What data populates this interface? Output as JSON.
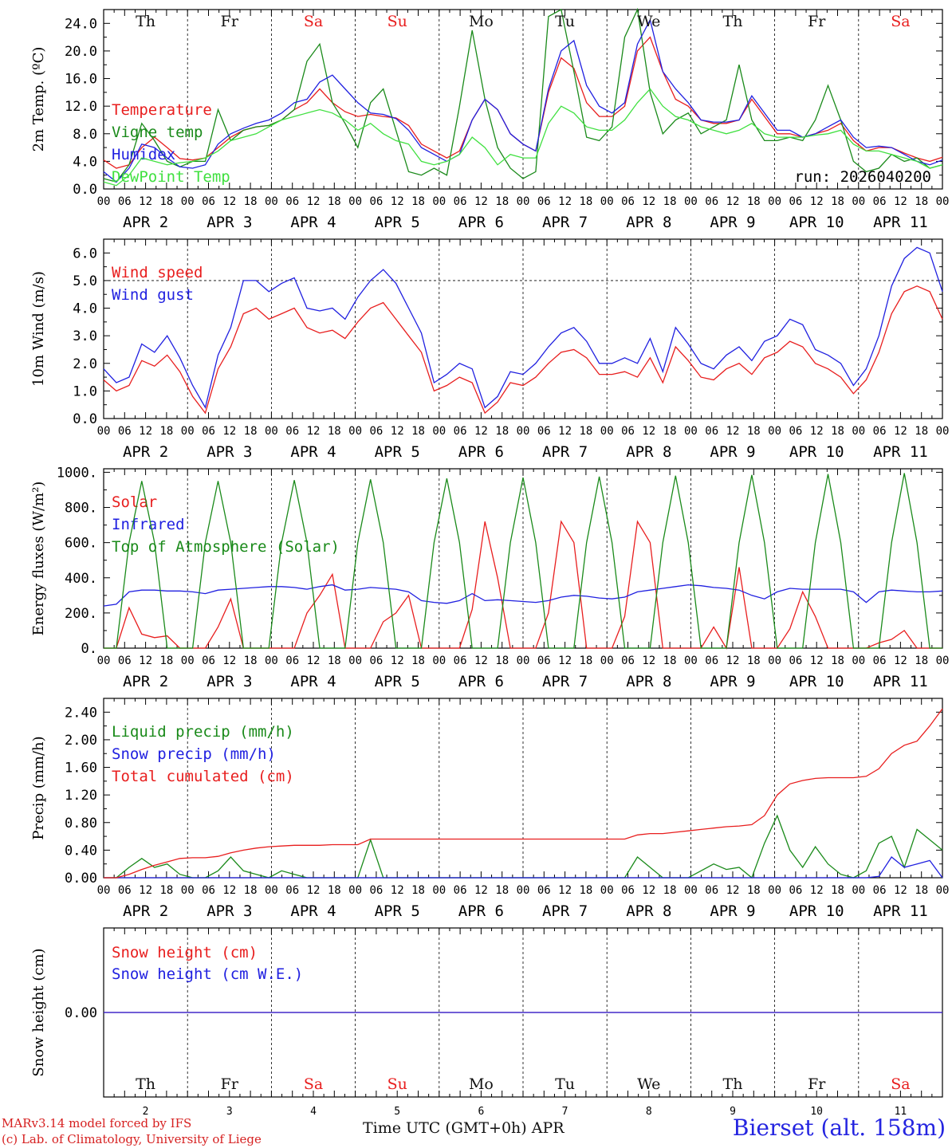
{
  "x_axis": {
    "hour_ticks": [
      "00",
      "06",
      "12",
      "18"
    ],
    "final_hour_tick": "00",
    "date_labels": [
      "APR  2",
      "APR  3",
      "APR  4",
      "APR  5",
      "APR  6",
      "APR  7",
      "APR  8",
      "APR  9",
      "APR 10",
      "APR 11"
    ],
    "day_names": [
      "Th",
      "Fr",
      "Sa",
      "Su",
      "Mo",
      "Tu",
      "We",
      "Th",
      "Fr",
      "Sa"
    ],
    "weekend_flags": [
      false,
      false,
      true,
      true,
      false,
      false,
      false,
      false,
      false,
      true
    ],
    "bottom_day_numbers": [
      "2",
      "3",
      "4",
      "5",
      "6",
      "7",
      "8",
      "9",
      "10",
      "11"
    ]
  },
  "colors": {
    "red": "#e81e1e",
    "blue": "#2020e0",
    "green": "#1a8a1a",
    "light_green": "#40e040",
    "weekend": "#e81e1e",
    "weekday": "#111111"
  },
  "run_label": "run: 2026040200",
  "chart_data": [
    {
      "type": "line",
      "ylabel": "2m Temp. (ºC)",
      "ylim": [
        0,
        26
      ],
      "yticks": [
        "0.0",
        "4.0",
        "8.0",
        "12.0",
        "16.0",
        "20.0",
        "24.0"
      ],
      "ytick_values": [
        0,
        4,
        8,
        12,
        16,
        20,
        24
      ],
      "series": [
        {
          "name": "Temperature",
          "color": "#e81e1e",
          "values": [
            4.2,
            3.0,
            3.5,
            6.0,
            7.5,
            6.0,
            4.4,
            4.2,
            4.5,
            6.0,
            7.5,
            8.5,
            9.0,
            9.2,
            10.0,
            11.5,
            12.5,
            14.5,
            12.5,
            11.2,
            10.5,
            10.8,
            10.5,
            10.3,
            9.2,
            6.5,
            5.5,
            4.5,
            5.5,
            10.0,
            13.0,
            11.5,
            8.0,
            6.5,
            5.5,
            14.0,
            19.0,
            17.5,
            12.5,
            10.5,
            10.5,
            12.0,
            20.0,
            22.0,
            17.0,
            13.0,
            12.0,
            10.0,
            9.5,
            9.5,
            10.0,
            13.0,
            10.5,
            8.0,
            8.0,
            7.5,
            8.0,
            8.5,
            9.5,
            7.0,
            5.5,
            6.0,
            6.0,
            5.2,
            4.5,
            4.0,
            4.6
          ]
        },
        {
          "name": "Vigne temp",
          "color": "#1a8a1a",
          "values": [
            1.5,
            1.0,
            3.5,
            9.5,
            7.0,
            4.0,
            3.2,
            4.0,
            4.0,
            11.5,
            7.0,
            8.5,
            9.0,
            9.2,
            10.0,
            11.5,
            18.5,
            21.0,
            12.5,
            9.5,
            6.0,
            12.5,
            14.5,
            8.5,
            2.5,
            2.0,
            3.0,
            2.0,
            12.0,
            23.0,
            13.0,
            6.0,
            3.0,
            1.5,
            2.5,
            25.0,
            26.0,
            17.0,
            7.5,
            7.0,
            9.0,
            22.0,
            26.0,
            14.0,
            8.0,
            10.0,
            11.0,
            8.0,
            9.0,
            10.0,
            18.0,
            10.0,
            7.0,
            7.0,
            7.5,
            7.0,
            10.0,
            15.0,
            10.0,
            4.0,
            2.5,
            3.0,
            5.0,
            4.0,
            4.5,
            3.0,
            3.5
          ]
        },
        {
          "name": "Humidex",
          "color": "#2020e0",
          "values": [
            2.5,
            1.0,
            3.0,
            6.5,
            6.0,
            4.5,
            3.2,
            3.0,
            3.5,
            6.5,
            8.0,
            8.8,
            9.5,
            10.0,
            11.0,
            12.5,
            13.0,
            15.5,
            16.5,
            14.5,
            12.5,
            11.0,
            10.8,
            10.2,
            8.5,
            6.0,
            5.0,
            4.0,
            5.0,
            10.0,
            13.0,
            11.5,
            8.0,
            6.5,
            5.5,
            14.5,
            20.0,
            21.5,
            15.0,
            12.0,
            11.0,
            12.5,
            21.0,
            24.5,
            17.0,
            14.5,
            12.5,
            10.0,
            9.7,
            9.7,
            10.0,
            13.5,
            11.0,
            8.5,
            8.5,
            7.5,
            8.0,
            9.0,
            10.0,
            7.5,
            6.0,
            6.2,
            6.0,
            5.0,
            4.0,
            3.5,
            4.2
          ]
        },
        {
          "name": "DewPoint Temp",
          "color": "#40e040",
          "values": [
            1.0,
            0.5,
            2.0,
            4.5,
            4.0,
            3.5,
            3.8,
            4.0,
            4.5,
            5.5,
            7.0,
            7.5,
            8.0,
            9.0,
            10.0,
            10.5,
            11.0,
            11.5,
            11.0,
            10.0,
            8.5,
            9.5,
            8.0,
            7.0,
            6.5,
            4.0,
            3.5,
            4.0,
            5.0,
            7.5,
            6.0,
            3.5,
            5.0,
            4.5,
            4.5,
            9.5,
            12.0,
            11.0,
            9.0,
            8.5,
            8.5,
            10.0,
            12.5,
            14.5,
            12.0,
            10.5,
            10.0,
            9.0,
            8.5,
            8.0,
            8.5,
            9.5,
            8.0,
            7.5,
            7.5,
            7.5,
            7.8,
            8.0,
            8.5,
            6.5,
            5.5,
            5.5,
            5.0,
            4.5,
            4.0,
            3.0,
            3.5
          ]
        }
      ]
    },
    {
      "type": "line",
      "ylabel": "10m Wind (m/s)",
      "ylim": [
        0,
        6.5
      ],
      "yticks": [
        "0.0",
        "1.0",
        "2.0",
        "3.0",
        "4.0",
        "5.0",
        "6.0"
      ],
      "ytick_values": [
        0,
        1,
        2,
        3,
        4,
        5,
        6
      ],
      "ref_line": 5.0,
      "series": [
        {
          "name": "Wind speed",
          "color": "#e81e1e",
          "values": [
            1.4,
            1.0,
            1.2,
            2.1,
            1.9,
            2.3,
            1.7,
            0.8,
            0.2,
            1.8,
            2.6,
            3.8,
            4.0,
            3.6,
            3.8,
            4.0,
            3.3,
            3.1,
            3.2,
            2.9,
            3.5,
            4.0,
            4.2,
            3.6,
            3.0,
            2.4,
            1.0,
            1.2,
            1.5,
            1.3,
            0.2,
            0.6,
            1.3,
            1.2,
            1.5,
            2.0,
            2.4,
            2.5,
            2.2,
            1.6,
            1.6,
            1.7,
            1.5,
            2.2,
            1.3,
            2.6,
            2.1,
            1.5,
            1.4,
            1.8,
            2.0,
            1.6,
            2.2,
            2.4,
            2.8,
            2.6,
            2.0,
            1.8,
            1.5,
            0.9,
            1.4,
            2.4,
            3.8,
            4.6,
            4.8,
            4.6,
            3.6
          ]
        },
        {
          "name": "Wind gust",
          "color": "#2020e0",
          "values": [
            1.8,
            1.3,
            1.5,
            2.7,
            2.4,
            3.0,
            2.2,
            1.2,
            0.4,
            2.3,
            3.3,
            5.0,
            5.0,
            4.6,
            4.9,
            5.1,
            4.0,
            3.9,
            4.0,
            3.6,
            4.4,
            5.0,
            5.4,
            4.9,
            4.0,
            3.1,
            1.3,
            1.6,
            2.0,
            1.8,
            0.4,
            0.8,
            1.7,
            1.6,
            2.0,
            2.6,
            3.1,
            3.3,
            2.8,
            2.0,
            2.0,
            2.2,
            2.0,
            2.9,
            1.7,
            3.3,
            2.7,
            2.0,
            1.8,
            2.3,
            2.6,
            2.1,
            2.8,
            3.0,
            3.6,
            3.4,
            2.5,
            2.3,
            2.0,
            1.2,
            1.8,
            3.0,
            4.8,
            5.8,
            6.2,
            6.0,
            4.6
          ]
        }
      ]
    },
    {
      "type": "line",
      "ylabel": "Energy fluxes (W/m²)",
      "ylim": [
        0,
        1020
      ],
      "yticks": [
        "0.",
        "200.",
        "400.",
        "600.",
        "800.",
        "1000."
      ],
      "ytick_values": [
        0,
        200,
        400,
        600,
        800,
        1000
      ],
      "series": [
        {
          "name": "Solar",
          "color": "#e81e1e",
          "values": [
            0,
            0,
            230,
            80,
            60,
            70,
            0,
            0,
            0,
            120,
            280,
            0,
            0,
            0,
            0,
            0,
            200,
            300,
            420,
            0,
            0,
            0,
            150,
            200,
            300,
            0,
            0,
            0,
            0,
            220,
            720,
            400,
            0,
            0,
            0,
            200,
            720,
            600,
            0,
            0,
            0,
            180,
            720,
            600,
            0,
            0,
            0,
            0,
            120,
            0,
            460,
            0,
            0,
            0,
            110,
            320,
            180,
            0,
            0,
            0,
            0,
            30,
            50,
            100,
            0,
            0,
            0
          ]
        },
        {
          "name": "Infrared",
          "color": "#2020e0",
          "values": [
            240,
            250,
            320,
            330,
            330,
            325,
            325,
            320,
            310,
            330,
            335,
            340,
            345,
            350,
            350,
            345,
            335,
            350,
            360,
            330,
            335,
            345,
            340,
            335,
            320,
            270,
            260,
            255,
            270,
            310,
            270,
            275,
            270,
            265,
            260,
            270,
            290,
            300,
            295,
            285,
            280,
            290,
            320,
            330,
            340,
            350,
            360,
            355,
            345,
            340,
            330,
            300,
            280,
            320,
            340,
            335,
            335,
            335,
            335,
            320,
            260,
            320,
            330,
            325,
            320,
            320,
            325
          ]
        },
        {
          "name": "Top of Atmosphere (Solar)",
          "color": "#1a8a1a",
          "values": [
            0,
            0,
            600,
            950,
            600,
            0,
            0,
            0,
            600,
            950,
            600,
            0,
            0,
            0,
            600,
            955,
            600,
            0,
            0,
            0,
            600,
            960,
            600,
            0,
            0,
            0,
            600,
            965,
            600,
            0,
            0,
            0,
            600,
            970,
            600,
            0,
            0,
            0,
            600,
            975,
            600,
            0,
            0,
            0,
            600,
            980,
            600,
            0,
            0,
            0,
            600,
            985,
            600,
            0,
            0,
            0,
            600,
            990,
            600,
            0,
            0,
            0,
            600,
            995,
            600,
            0,
            0
          ]
        }
      ]
    },
    {
      "type": "line",
      "ylabel": "Precip (mm/h)",
      "ylim": [
        0,
        2.6
      ],
      "yticks": [
        "0.00",
        "0.40",
        "0.80",
        "1.20",
        "1.60",
        "2.00",
        "2.40"
      ],
      "ytick_values": [
        0,
        0.4,
        0.8,
        1.2,
        1.6,
        2.0,
        2.4
      ],
      "series": [
        {
          "name": "Liquid precip (mm/h)",
          "color": "#1a8a1a",
          "values": [
            0,
            0,
            0.15,
            0.28,
            0.15,
            0.2,
            0.05,
            0,
            0,
            0.1,
            0.3,
            0.1,
            0.05,
            0,
            0.1,
            0.05,
            0,
            0,
            0,
            0,
            0,
            0.55,
            0,
            0,
            0,
            0,
            0,
            0,
            0,
            0,
            0,
            0,
            0,
            0,
            0,
            0,
            0,
            0,
            0,
            0,
            0,
            0,
            0.3,
            0.15,
            0,
            0,
            0,
            0.1,
            0.2,
            0.12,
            0.15,
            0,
            0.5,
            0.9,
            0.4,
            0.15,
            0.45,
            0.2,
            0.05,
            0,
            0.1,
            0.5,
            0.6,
            0.15,
            0.7,
            0.55,
            0.4
          ]
        },
        {
          "name": "Snow precip (mm/h)",
          "color": "#2020e0",
          "values": [
            0,
            0,
            0,
            0,
            0,
            0,
            0,
            0,
            0,
            0,
            0,
            0,
            0,
            0,
            0,
            0,
            0,
            0,
            0,
            0,
            0,
            0,
            0,
            0,
            0,
            0,
            0,
            0,
            0,
            0,
            0,
            0,
            0,
            0,
            0,
            0,
            0,
            0,
            0,
            0,
            0,
            0,
            0,
            0,
            0,
            0,
            0,
            0,
            0,
            0,
            0,
            0,
            0,
            0,
            0,
            0,
            0,
            0,
            0,
            0,
            0,
            0.02,
            0.3,
            0.15,
            0.2,
            0.25,
            0
          ]
        },
        {
          "name": "Total cumulated (cm)",
          "color": "#e81e1e",
          "values": [
            0,
            0,
            0.05,
            0.12,
            0.18,
            0.23,
            0.28,
            0.29,
            0.29,
            0.31,
            0.36,
            0.4,
            0.43,
            0.45,
            0.46,
            0.47,
            0.47,
            0.47,
            0.48,
            0.48,
            0.48,
            0.56,
            0.56,
            0.56,
            0.56,
            0.56,
            0.56,
            0.56,
            0.56,
            0.56,
            0.56,
            0.56,
            0.56,
            0.56,
            0.56,
            0.56,
            0.56,
            0.56,
            0.56,
            0.56,
            0.56,
            0.56,
            0.62,
            0.64,
            0.64,
            0.66,
            0.68,
            0.7,
            0.72,
            0.74,
            0.75,
            0.77,
            0.9,
            1.2,
            1.36,
            1.41,
            1.44,
            1.45,
            1.45,
            1.45,
            1.47,
            1.58,
            1.8,
            1.92,
            1.98,
            2.2,
            2.45
          ]
        }
      ]
    },
    {
      "type": "line",
      "ylabel": "Snow height (cm)",
      "yticks": [
        "0.00"
      ],
      "ytick_values": [
        0
      ],
      "series": [
        {
          "name": "Snow height (cm)",
          "color": "#e81e1e",
          "values": [
            0,
            0
          ]
        },
        {
          "name": "Snow height (cm W.E.)",
          "color": "#2020e0",
          "values": [
            0,
            0
          ]
        }
      ]
    }
  ],
  "footer": {
    "model_credit": "MARv3.14 model forced by IFS",
    "lab_credit": "(c) Lab. of Climatology, University of Liege",
    "axis_title": "Time UTC (GMT+0h) APR",
    "station": "Bierset (alt. 158m)"
  }
}
